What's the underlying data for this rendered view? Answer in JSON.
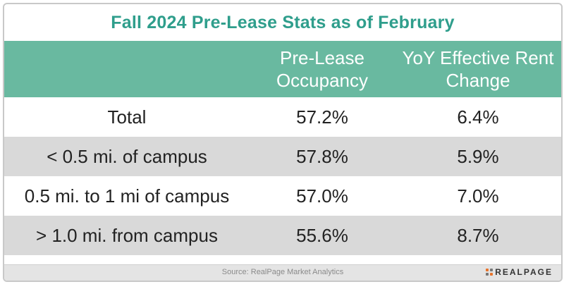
{
  "chart_data": {
    "type": "table",
    "title": "Fall 2024 Pre-Lease Stats as of February",
    "columns": [
      "",
      "Pre-Lease\nOccupancy",
      "YoY Effective Rent\nChange"
    ],
    "rows": [
      {
        "label": "Total",
        "occupancy": "57.2%",
        "rent_change": "6.4%"
      },
      {
        "label": "< 0.5 mi. of campus",
        "occupancy": "57.8%",
        "rent_change": "5.9%"
      },
      {
        "label": "0.5 mi. to 1 mi of campus",
        "occupancy": "57.0%",
        "rent_change": "7.0%"
      },
      {
        "label": "> 1.0 mi. from campus",
        "occupancy": "55.6%",
        "rent_change": "8.7%"
      }
    ],
    "source": "Source: RealPage Market Analytics"
  },
  "brand": {
    "logo_text": "REALPAGE"
  },
  "colors": {
    "title": "#2f9e8c",
    "header_bg": "#69b9a0",
    "shade_row": "#d9d9d9",
    "logo_accent": "#e8742c"
  }
}
